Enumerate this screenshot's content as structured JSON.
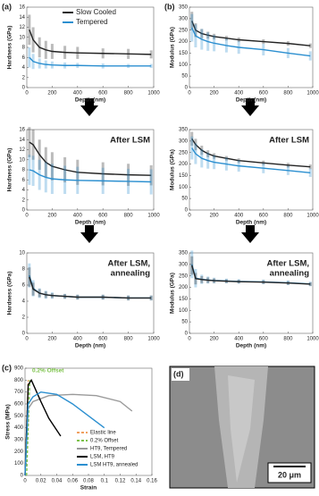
{
  "panel_labels": [
    "(a)",
    "(b)",
    "(c)",
    "(d)"
  ],
  "chart_data": [
    {
      "type": "line",
      "y_label": "Hardness (GPa)",
      "x_label": "Depth (nm)",
      "xlim": [
        0,
        1000
      ],
      "xticks": [
        0,
        200,
        400,
        600,
        800,
        1000
      ],
      "ylim": [
        0,
        16
      ],
      "yticks": [
        0,
        2,
        4,
        6,
        8,
        10,
        12,
        14,
        16
      ],
      "x": [
        20,
        50,
        100,
        150,
        200,
        300,
        400,
        600,
        800,
        980
      ],
      "series": [
        {
          "name": "Slow Cooled",
          "color": "#222222",
          "values": [
            11.5,
            9.5,
            8,
            7.5,
            7.2,
            7,
            6.9,
            6.8,
            6.7,
            6.6
          ],
          "error": [
            3,
            2.5,
            2,
            1.8,
            1.5,
            1.3,
            1.2,
            1,
            1,
            0.8
          ]
        },
        {
          "name": "Tempered",
          "color": "#2b8fd0",
          "values": [
            6,
            5.2,
            4.8,
            4.6,
            4.5,
            4.4,
            4.4,
            4.3,
            4.3,
            4.3
          ],
          "error": [
            2,
            1.5,
            1,
            0.8,
            0.7,
            0.6,
            0.5,
            0.5,
            0.4,
            0.4
          ]
        }
      ]
    },
    {
      "type": "line",
      "y_label": "Modulus (GPa)",
      "x_label": "Depth (nm)",
      "xlim": [
        0,
        1000
      ],
      "xticks": [
        0,
        200,
        400,
        600,
        800,
        1000
      ],
      "ylim": [
        0,
        350
      ],
      "yticks": [
        0,
        50,
        100,
        150,
        200,
        250,
        300,
        350
      ],
      "x": [
        20,
        50,
        100,
        150,
        200,
        300,
        400,
        600,
        800,
        980
      ],
      "series": [
        {
          "color": "#222222",
          "values": [
            290,
            250,
            235,
            228,
            222,
            215,
            208,
            200,
            192,
            182
          ],
          "error": [
            40,
            30,
            20,
            15,
            12,
            10,
            10,
            10,
            10,
            10
          ]
        },
        {
          "color": "#2b8fd0",
          "values": [
            260,
            225,
            210,
            200,
            193,
            183,
            175,
            165,
            150,
            138
          ],
          "error": [
            60,
            50,
            45,
            40,
            35,
            30,
            28,
            25,
            22,
            20
          ]
        }
      ]
    },
    {
      "type": "line",
      "y_label": "Hardness (GPa)",
      "x_label": "Depth (nm)",
      "annotation": [
        "After LSM"
      ],
      "xlim": [
        0,
        1000
      ],
      "xticks": [
        0,
        200,
        400,
        600,
        800,
        1000
      ],
      "ylim": [
        0,
        16
      ],
      "yticks": [
        0,
        2,
        4,
        6,
        8,
        10,
        12,
        14,
        16
      ],
      "x": [
        20,
        50,
        100,
        150,
        200,
        300,
        400,
        600,
        800,
        980
      ],
      "series": [
        {
          "color": "#222222",
          "values": [
            13.5,
            13,
            11,
            9.5,
            8.7,
            8,
            7.5,
            7.2,
            7,
            6.9
          ],
          "error": [
            3,
            3,
            3,
            3,
            2.8,
            2.5,
            2.5,
            2.3,
            2.2,
            2
          ]
        },
        {
          "color": "#2b8fd0",
          "values": [
            8,
            7.8,
            7,
            6.5,
            6.2,
            6,
            5.9,
            5.8,
            5.7,
            5.6
          ],
          "error": [
            3,
            3,
            3,
            3,
            3,
            2.8,
            2.7,
            2.6,
            2.5,
            2.5
          ]
        }
      ]
    },
    {
      "type": "line",
      "y_label": "Modulus (GPa)",
      "x_label": "Depth (nm)",
      "annotation": [
        "After LSM"
      ],
      "xlim": [
        0,
        1000
      ],
      "xticks": [
        0,
        200,
        400,
        600,
        800,
        1000
      ],
      "ylim": [
        0,
        350
      ],
      "yticks": [
        0,
        50,
        100,
        150,
        200,
        250,
        300,
        350
      ],
      "x": [
        20,
        50,
        100,
        150,
        200,
        300,
        400,
        600,
        800,
        980
      ],
      "series": [
        {
          "color": "#222222",
          "values": [
            310,
            285,
            260,
            245,
            235,
            225,
            215,
            205,
            195,
            188
          ],
          "error": [
            30,
            25,
            20,
            15,
            12,
            10,
            10,
            10,
            10,
            10
          ]
        },
        {
          "color": "#2b8fd0",
          "values": [
            270,
            245,
            225,
            215,
            208,
            200,
            192,
            182,
            172,
            162
          ],
          "error": [
            50,
            45,
            40,
            35,
            30,
            28,
            25,
            22,
            20,
            18
          ]
        }
      ]
    },
    {
      "type": "line",
      "y_label": "Hardness (GPa)",
      "x_label": "Depth (nm)",
      "annotation": [
        "After LSM,",
        "annealing"
      ],
      "xlim": [
        0,
        1000
      ],
      "xticks": [
        0,
        200,
        400,
        600,
        800,
        1000
      ],
      "ylim": [
        0,
        10
      ],
      "yticks": [
        0,
        2,
        4,
        6,
        8,
        10
      ],
      "x": [
        20,
        50,
        100,
        150,
        200,
        300,
        400,
        600,
        800,
        980
      ],
      "series": [
        {
          "color": "#2b8fd0",
          "values": [
            7.2,
            5.6,
            5,
            4.8,
            4.7,
            4.6,
            4.5,
            4.5,
            4.4,
            4.4
          ],
          "error": [
            1.5,
            1,
            0.6,
            0.5,
            0.4,
            0.3,
            0.3,
            0.3,
            0.3,
            0.3
          ]
        },
        {
          "color": "#222222",
          "values": [
            7,
            5.5,
            5,
            4.8,
            4.7,
            4.6,
            4.5,
            4.5,
            4.4,
            4.4
          ],
          "error": [
            1.2,
            0.8,
            0.5,
            0.4,
            0.3,
            0.3,
            0.3,
            0.3,
            0.3,
            0.3
          ]
        }
      ]
    },
    {
      "type": "line",
      "y_label": "Modulus (GPa)",
      "x_label": "Depth (nm)",
      "annotation": [
        "After LSM,",
        "annealing"
      ],
      "xlim": [
        0,
        1000
      ],
      "xticks": [
        0,
        200,
        400,
        600,
        800,
        1000
      ],
      "ylim": [
        0,
        350
      ],
      "yticks": [
        0,
        50,
        100,
        150,
        200,
        250,
        300,
        350
      ],
      "x": [
        20,
        50,
        100,
        150,
        200,
        300,
        400,
        600,
        800,
        980
      ],
      "series": [
        {
          "color": "#2b8fd0",
          "values": [
            300,
            240,
            235,
            232,
            230,
            228,
            226,
            224,
            220,
            215
          ],
          "error": [
            60,
            40,
            20,
            15,
            12,
            10,
            10,
            10,
            10,
            10
          ]
        },
        {
          "color": "#222222",
          "values": [
            295,
            238,
            234,
            231,
            229,
            227,
            225,
            223,
            219,
            214
          ],
          "error": [
            40,
            25,
            15,
            12,
            10,
            8,
            8,
            8,
            8,
            8
          ]
        }
      ]
    },
    {
      "type": "line",
      "y_label": "Stress (MPa)",
      "x_label": "Strain",
      "annotation": [
        "0.2% Offset"
      ],
      "xlim": [
        0,
        0.16
      ],
      "xticks": [
        0,
        0.02,
        0.04,
        0.06,
        0.08,
        0.1,
        0.12,
        0.14,
        0.16
      ],
      "ylim": [
        0,
        900
      ],
      "yticks": [
        0,
        100,
        200,
        300,
        400,
        500,
        600,
        700,
        800,
        900
      ],
      "series": [
        {
          "name": "Elastic line",
          "color": "#f0a060",
          "dash": true,
          "x": [
            0,
            0.004
          ],
          "values": [
            0,
            800
          ]
        },
        {
          "name": "0.2% Offset",
          "color": "#7cc24a",
          "dash": true,
          "x": [
            0.002,
            0.006
          ],
          "values": [
            0,
            800
          ]
        },
        {
          "name": "HT9, Tempered",
          "color": "#9a9a9a",
          "x": [
            0,
            0.004,
            0.01,
            0.03,
            0.06,
            0.09,
            0.12,
            0.135
          ],
          "values": [
            0,
            560,
            620,
            670,
            680,
            670,
            620,
            540
          ]
        },
        {
          "name": "LSM, HT9",
          "color": "#000000",
          "x": [
            0,
            0.004,
            0.008,
            0.012,
            0.02,
            0.03,
            0.04,
            0.045
          ],
          "values": [
            0,
            760,
            800,
            740,
            620,
            480,
            380,
            330
          ]
        },
        {
          "name": "LSM HT9, annealed",
          "color": "#2b8fd0",
          "x": [
            0,
            0.004,
            0.01,
            0.02,
            0.04,
            0.06,
            0.08,
            0.1
          ],
          "values": [
            0,
            600,
            660,
            700,
            680,
            600,
            500,
            400
          ]
        }
      ]
    }
  ],
  "image": {
    "scale_bar": "20 μm"
  }
}
